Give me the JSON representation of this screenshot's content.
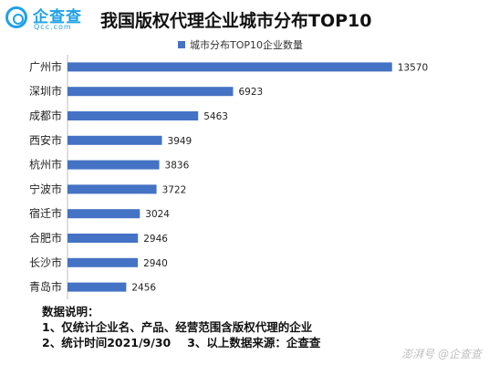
{
  "brand": {
    "name": "企查查",
    "domain": "Qcc.com"
  },
  "chart_data": {
    "type": "bar",
    "orientation": "horizontal",
    "title": "我国版权代理企业城市分布TOP10",
    "legend_position": "top-center",
    "grid": false,
    "bar_color": "#4472c4",
    "xlim": [
      0,
      14000
    ],
    "categories": [
      "广州市",
      "深圳市",
      "成都市",
      "西安市",
      "杭州市",
      "宁波市",
      "宿迁市",
      "合肥市",
      "长沙市",
      "青岛市"
    ],
    "series": [
      {
        "name": "城市分布TOP10企业数量",
        "values": [
          13570,
          6923,
          5463,
          3949,
          3836,
          3722,
          3024,
          2946,
          2940,
          2456
        ]
      }
    ]
  },
  "notes": {
    "heading": "数据说明：",
    "line1": "1、仅统计企业名、产品、经营范围含版权代理的企业",
    "line2a": "2、统计时间2021/9/30",
    "line2b": "3、以上数据来源：企查查"
  },
  "watermark": "澎湃号 @企查查"
}
